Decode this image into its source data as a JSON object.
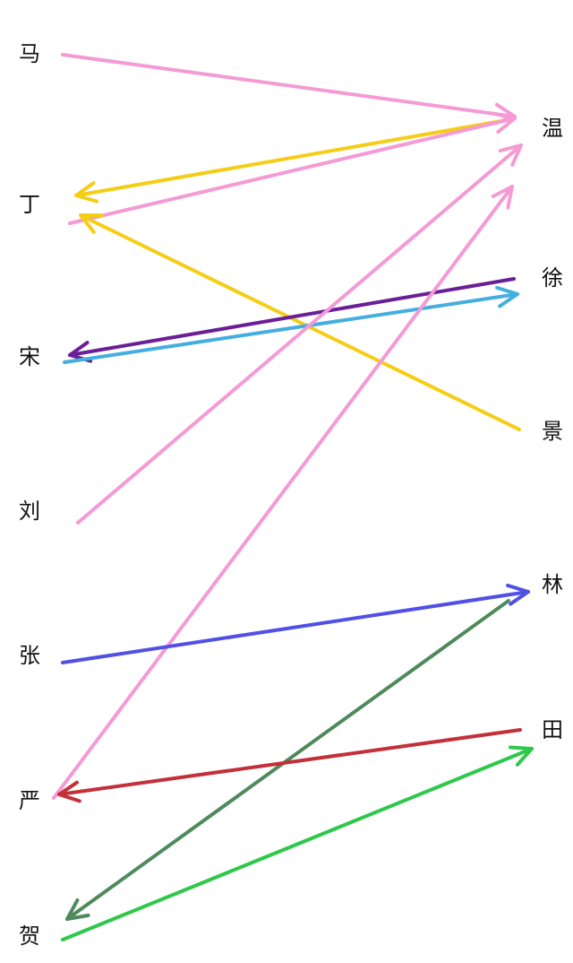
{
  "left_names": [
    "马",
    "丁",
    "宋",
    "刘",
    "张",
    "严",
    "贺"
  ],
  "right_names": [
    "温",
    "徐",
    "景",
    "林",
    "田"
  ],
  "arrows": [
    {
      "from": "马",
      "to": "温",
      "color": "#f49ad4"
    },
    {
      "from": "温",
      "to": "丁",
      "color": "#f5cd14"
    },
    {
      "from": "丁",
      "to": "温",
      "color": "#f49ad4"
    },
    {
      "from": "景",
      "to": "丁",
      "color": "#f5cd14"
    },
    {
      "from": "徐",
      "to": "宋",
      "color": "#6a1f96"
    },
    {
      "from": "宋",
      "to": "徐",
      "color": "#45aee0"
    },
    {
      "from": "刘",
      "to": "温",
      "color": "#f49ad4"
    },
    {
      "from": "严",
      "to": "温",
      "color": "#f49ad4"
    },
    {
      "from": "张",
      "to": "林",
      "color": "#5050e6"
    },
    {
      "from": "林",
      "to": "贺",
      "color": "#4e8a5c"
    },
    {
      "from": "田",
      "to": "严",
      "color": "#c3303a"
    },
    {
      "from": "贺",
      "to": "田",
      "color": "#2ec84a"
    }
  ]
}
